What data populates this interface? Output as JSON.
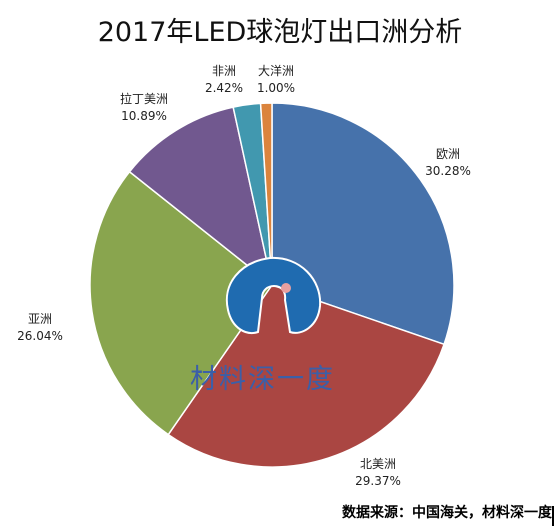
{
  "title": "2017年LED球泡灯出口洲分析",
  "watermark": "材料深一度",
  "source": "数据来源：中国海关，材料深一度",
  "colors": {
    "欧洲": "#4672ab",
    "北美洲": "#aa4642",
    "亚洲": "#89a54e",
    "拉丁美洲": "#71588f",
    "非洲": "#4198af",
    "大洋洲": "#db843d",
    "watermark": "#1f6bb0"
  },
  "chart_data": {
    "type": "pie",
    "title": "2017年LED球泡灯出口洲分析",
    "slices": [
      {
        "name": "欧洲",
        "value": 30.28,
        "label": "30.28%"
      },
      {
        "name": "北美洲",
        "value": 29.37,
        "label": "29.37%"
      },
      {
        "name": "亚洲",
        "value": 26.04,
        "label": "26.04%"
      },
      {
        "name": "拉丁美洲",
        "value": 10.89,
        "label": "10.89%"
      },
      {
        "name": "非洲",
        "value": 2.42,
        "label": "2.42%"
      },
      {
        "name": "大洋洲",
        "value": 1.0,
        "label": "1.00%"
      }
    ],
    "start_angle": "12 o'clock",
    "direction": "clockwise",
    "legend": "none"
  }
}
